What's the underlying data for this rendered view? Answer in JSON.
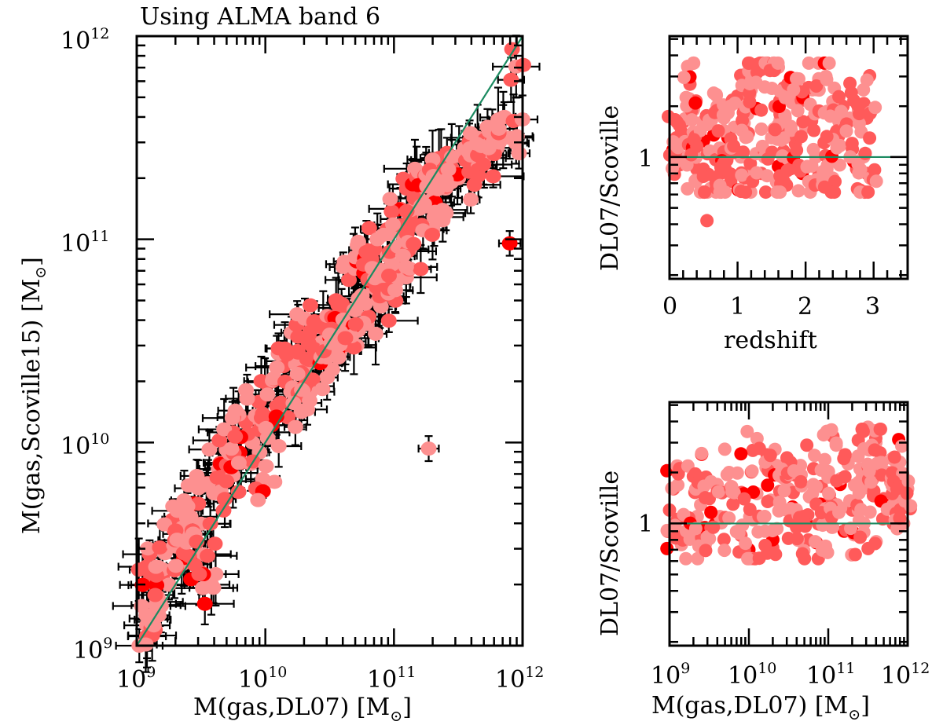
{
  "figure": {
    "title": "Using ALMA band 6"
  },
  "colors": {
    "point_dark": "#ff0000",
    "point_mid": "#ff5a5a",
    "point_light": "#fd9090",
    "one_to_one_line": "#1a8a60",
    "errorbar": "#000000",
    "axes": "#000000"
  },
  "chart_data": [
    {
      "id": "main",
      "type": "scatter",
      "title": "Using ALMA band 6",
      "xlabel": "M(gas,DL07) [M⊙]",
      "xlabel_main": "M(gas,DL07) [M",
      "xlabel_sub": "⊙",
      "xlabel_end": "]",
      "ylabel": "M(gas,Scoville15) [M⊙]",
      "ylabel_main": "M(gas,Scoville15) [M",
      "ylabel_sub": "⊙",
      "ylabel_end": "]",
      "xscale": "log",
      "yscale": "log",
      "xlim": [
        1000000000.0,
        1000000000000.0
      ],
      "ylim": [
        1000000000.0,
        1000000000000.0
      ],
      "xticks": [
        {
          "base": "10",
          "exp": "9"
        },
        {
          "base": "10",
          "exp": "10"
        },
        {
          "base": "10",
          "exp": "11"
        },
        {
          "base": "10",
          "exp": "12"
        }
      ],
      "yticks": [
        {
          "base": "10",
          "exp": "9"
        },
        {
          "base": "10",
          "exp": "10"
        },
        {
          "base": "10",
          "exp": "11"
        },
        {
          "base": "10",
          "exp": "12"
        }
      ],
      "reference_line": {
        "label": "1:1",
        "from": [
          1000000000.0,
          1000000000.0
        ],
        "to": [
          1000000000000.0,
          1000000000000.0
        ]
      },
      "errorbars": true,
      "grid": false,
      "notes": "Points with x/y error bars; dense cloud along the 1:1 relation with slight offset below line at high mass; outliers at (1.9e11, 9.4e9) and (8e11, 9.6e10).",
      "points_log10": [
        [
          9.02,
          9.0,
          2
        ],
        [
          9.08,
          9.1,
          2
        ],
        [
          9.12,
          9.05,
          1
        ],
        [
          9.05,
          9.3,
          1
        ],
        [
          9.15,
          9.2,
          2
        ],
        [
          9.2,
          9.35,
          1
        ],
        [
          9.1,
          9.45,
          1
        ],
        [
          9.25,
          9.3,
          2
        ],
        [
          9.3,
          9.5,
          1
        ],
        [
          9.35,
          9.4,
          2
        ],
        [
          9.28,
          9.62,
          1
        ],
        [
          9.4,
          9.55,
          2
        ],
        [
          9.45,
          9.7,
          0
        ],
        [
          9.5,
          9.6,
          2
        ],
        [
          9.55,
          9.8,
          1
        ],
        [
          9.52,
          9.45,
          2
        ],
        [
          9.6,
          9.75,
          2
        ],
        [
          9.65,
          9.9,
          1
        ],
        [
          9.7,
          9.85,
          2
        ],
        [
          9.75,
          10.05,
          1
        ],
        [
          9.58,
          9.3,
          2
        ],
        [
          9.8,
          9.95,
          0
        ],
        [
          9.85,
          10.1,
          1
        ],
        [
          9.9,
          10.0,
          2
        ],
        [
          9.95,
          10.2,
          1
        ],
        [
          10.0,
          10.05,
          2
        ],
        [
          10.05,
          10.3,
          1
        ],
        [
          9.98,
          9.82,
          2
        ],
        [
          10.1,
          10.15,
          2
        ],
        [
          10.15,
          10.4,
          1
        ],
        [
          10.2,
          10.25,
          2
        ],
        [
          10.25,
          10.45,
          1
        ],
        [
          10.3,
          10.35,
          2
        ],
        [
          10.35,
          10.55,
          1
        ],
        [
          10.4,
          10.4,
          2
        ],
        [
          10.45,
          10.6,
          0
        ],
        [
          10.5,
          10.5,
          2
        ],
        [
          10.55,
          10.7,
          1
        ],
        [
          10.6,
          10.55,
          2
        ],
        [
          10.65,
          10.8,
          1
        ],
        [
          10.7,
          10.65,
          2
        ],
        [
          10.75,
          10.9,
          1
        ],
        [
          10.8,
          10.8,
          2
        ],
        [
          10.85,
          10.95,
          1
        ],
        [
          10.9,
          10.85,
          2
        ],
        [
          10.95,
          11.05,
          1
        ],
        [
          11.0,
          10.95,
          2
        ],
        [
          11.05,
          11.15,
          1
        ],
        [
          11.1,
          11.05,
          2
        ],
        [
          11.15,
          11.25,
          1
        ],
        [
          11.2,
          11.15,
          2
        ],
        [
          11.25,
          11.3,
          0
        ],
        [
          11.3,
          11.2,
          2
        ],
        [
          11.35,
          11.4,
          1
        ],
        [
          11.4,
          11.25,
          2
        ],
        [
          11.45,
          11.35,
          1
        ],
        [
          11.5,
          11.3,
          2
        ],
        [
          11.55,
          11.45,
          2
        ],
        [
          11.6,
          11.35,
          1
        ],
        [
          11.65,
          11.5,
          2
        ],
        [
          11.7,
          11.4,
          2
        ],
        [
          11.75,
          11.55,
          1
        ],
        [
          11.8,
          11.45,
          2
        ],
        [
          11.85,
          11.6,
          1
        ],
        [
          11.9,
          11.5,
          2
        ],
        [
          11.95,
          11.85,
          2
        ],
        [
          10.35,
          10.25,
          2
        ],
        [
          10.58,
          10.45,
          2
        ],
        [
          10.72,
          10.55,
          2
        ],
        [
          10.88,
          10.7,
          2
        ],
        [
          11.02,
          10.85,
          2
        ],
        [
          10.28,
          10.15,
          2
        ],
        [
          10.48,
          10.32,
          2
        ],
        [
          10.62,
          10.48,
          1
        ],
        [
          10.8,
          10.62,
          2
        ],
        [
          10.92,
          10.78,
          2
        ],
        [
          11.12,
          10.95,
          2
        ],
        [
          11.3,
          11.05,
          2
        ],
        [
          10.92,
          10.78,
          0
        ],
        [
          10.56,
          10.45,
          0
        ],
        [
          11.27,
          9.97,
          2
        ],
        [
          11.9,
          10.98,
          0
        ]
      ]
    },
    {
      "id": "ratio_vs_redshift",
      "type": "scatter",
      "xlabel": "redshift",
      "ylabel": "DL07/Scoville",
      "xscale": "linear",
      "yscale": "log",
      "xlim": [
        0,
        3.5
      ],
      "ylim": [
        0.19,
        5.2
      ],
      "xticks": [
        "0",
        "1",
        "2",
        "3"
      ],
      "yticks": [
        "1"
      ],
      "reference_line": {
        "y": 1
      },
      "grid": false,
      "points": [
        [
          0.05,
          1.1,
          0
        ],
        [
          0.1,
          1.3,
          1
        ],
        [
          0.15,
          0.9,
          1
        ],
        [
          0.2,
          1.6,
          2
        ],
        [
          0.25,
          1.2,
          2
        ],
        [
          0.3,
          2.7,
          1
        ],
        [
          0.35,
          1.9,
          2
        ],
        [
          0.4,
          0.85,
          1
        ],
        [
          0.45,
          1.4,
          2
        ],
        [
          0.5,
          1.25,
          0
        ],
        [
          0.55,
          0.42,
          1
        ],
        [
          0.6,
          0.65,
          2
        ],
        [
          0.65,
          1.35,
          0
        ],
        [
          0.7,
          2.0,
          2
        ],
        [
          0.75,
          0.8,
          1
        ],
        [
          0.8,
          1.7,
          2
        ],
        [
          0.85,
          1.1,
          2
        ],
        [
          0.9,
          0.72,
          1
        ],
        [
          0.95,
          1.5,
          2
        ],
        [
          1.0,
          2.3,
          1
        ],
        [
          1.05,
          1.0,
          2
        ],
        [
          1.1,
          0.75,
          1
        ],
        [
          1.15,
          1.8,
          2
        ],
        [
          1.2,
          2.5,
          2
        ],
        [
          1.3,
          3.5,
          2
        ],
        [
          1.35,
          0.8,
          1
        ],
        [
          1.4,
          2.6,
          2
        ],
        [
          1.5,
          1.3,
          2
        ],
        [
          1.55,
          2.0,
          1
        ],
        [
          1.6,
          3.4,
          2
        ],
        [
          1.6,
          0.88,
          0
        ],
        [
          1.6,
          0.73,
          0
        ],
        [
          1.7,
          1.7,
          2
        ],
        [
          1.8,
          2.1,
          2
        ],
        [
          1.85,
          1.2,
          1
        ],
        [
          1.9,
          2.9,
          2
        ],
        [
          1.95,
          0.8,
          0
        ],
        [
          2.0,
          1.5,
          2
        ],
        [
          2.1,
          2.5,
          2
        ],
        [
          2.15,
          1.0,
          2
        ],
        [
          2.2,
          0.8,
          1
        ],
        [
          2.3,
          3.0,
          2
        ],
        [
          2.35,
          1.8,
          2
        ],
        [
          2.4,
          0.75,
          2
        ],
        [
          2.45,
          1.4,
          1
        ],
        [
          2.55,
          2.0,
          1
        ],
        [
          2.65,
          1.7,
          2
        ],
        [
          2.75,
          0.85,
          1
        ],
        [
          2.85,
          2.5,
          2
        ],
        [
          2.9,
          0.8,
          1
        ],
        [
          2.9,
          1.7,
          1
        ],
        [
          2.95,
          0.75,
          2
        ]
      ]
    },
    {
      "id": "ratio_vs_mass",
      "type": "scatter",
      "xlabel": "M(gas,DL07) [M⊙]",
      "xlabel_main": "M(gas,DL07) [M",
      "xlabel_sub": "⊙",
      "xlabel_end": "]",
      "ylabel": "DL07/Scoville",
      "xscale": "log",
      "yscale": "log",
      "xlim": [
        1000000000.0,
        1000000000000.0
      ],
      "ylim": [
        0.19,
        5.2
      ],
      "xticks": [
        {
          "base": "10",
          "exp": "9"
        },
        {
          "base": "10",
          "exp": "10"
        },
        {
          "base": "10",
          "exp": "11"
        },
        {
          "base": "10",
          "exp": "12"
        }
      ],
      "yticks": [
        "1"
      ],
      "reference_line": {
        "y": 1
      },
      "grid": false,
      "points": [
        [
          9.0,
          1.2,
          1
        ],
        [
          9.05,
          1.6,
          1
        ],
        [
          9.1,
          0.85,
          1
        ],
        [
          9.15,
          0.75,
          2
        ],
        [
          9.3,
          1.9,
          1
        ],
        [
          9.35,
          1.1,
          2
        ],
        [
          9.45,
          0.75,
          2
        ],
        [
          9.5,
          1.4,
          1
        ],
        [
          9.55,
          0.95,
          0
        ],
        [
          9.6,
          1.7,
          2
        ],
        [
          9.75,
          2.0,
          2
        ],
        [
          9.8,
          1.3,
          1
        ],
        [
          9.9,
          0.85,
          1
        ],
        [
          10.0,
          0.7,
          0
        ],
        [
          10.05,
          2.7,
          1
        ],
        [
          10.1,
          1.5,
          2
        ],
        [
          10.2,
          1.1,
          2
        ],
        [
          10.3,
          0.72,
          1
        ],
        [
          10.35,
          2.2,
          2
        ],
        [
          10.4,
          1.9,
          2
        ],
        [
          10.5,
          1.6,
          2
        ],
        [
          10.55,
          1.25,
          0
        ],
        [
          10.6,
          0.95,
          1
        ],
        [
          10.65,
          2.2,
          2
        ],
        [
          10.75,
          0.8,
          1
        ],
        [
          10.8,
          1.5,
          2
        ],
        [
          10.85,
          0.77,
          0
        ],
        [
          10.9,
          1.3,
          0
        ],
        [
          11.0,
          2.0,
          2
        ],
        [
          11.05,
          0.95,
          1
        ],
        [
          11.1,
          2.9,
          2
        ],
        [
          11.15,
          1.7,
          0
        ],
        [
          11.2,
          0.9,
          0
        ],
        [
          11.25,
          2.3,
          2
        ],
        [
          11.3,
          1.2,
          1
        ],
        [
          11.4,
          2.1,
          2
        ],
        [
          11.45,
          1.0,
          2
        ],
        [
          11.5,
          3.7,
          2
        ],
        [
          11.55,
          1.8,
          1
        ],
        [
          11.6,
          3.0,
          2
        ],
        [
          11.65,
          2.2,
          1
        ],
        [
          11.7,
          1.4,
          1
        ],
        [
          11.75,
          2.0,
          2
        ],
        [
          11.8,
          1.3,
          0
        ],
        [
          11.85,
          1.7,
          1
        ],
        [
          11.9,
          2.3,
          2
        ],
        [
          11.95,
          1.0,
          2
        ],
        [
          12.0,
          1.6,
          2
        ]
      ]
    }
  ]
}
